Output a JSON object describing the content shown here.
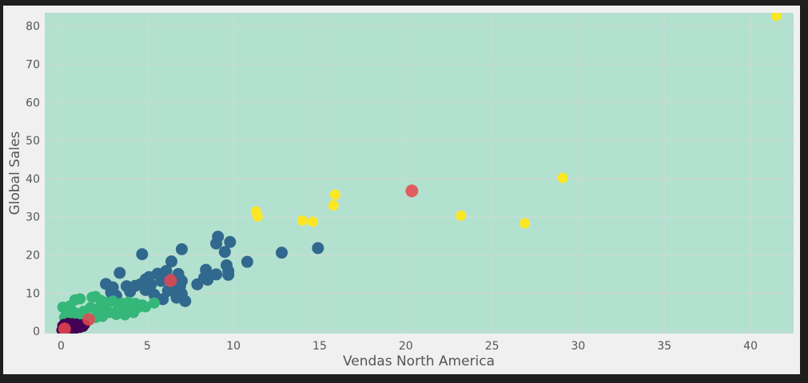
{
  "chart_data": {
    "type": "scatter",
    "title": "",
    "xlabel": "Vendas North America",
    "ylabel": "Global Sales",
    "xlim": [
      -0.95,
      42.5
    ],
    "ylim": [
      -0.6,
      83.5
    ],
    "xticks": [
      0,
      5,
      10,
      15,
      20,
      25,
      30,
      35,
      40
    ],
    "yticks": [
      0,
      10,
      20,
      30,
      40,
      50,
      60,
      70,
      80
    ],
    "grid": true,
    "colors": {
      "figure_background": "#f0f0f0",
      "grid": "#d6d6d6",
      "region_top": "#cccccc",
      "region_blue": "#cbd6e8",
      "region_yellow": "#fff2b3",
      "region_green": "#b3e1cf",
      "centroid": "#e8474f"
    },
    "regions": [
      {
        "name": "cluster-4-region",
        "color": "#cccccc",
        "boundary_lower": [
          [
            -0.95,
            34.0
          ],
          [
            42.5,
            8.0
          ]
        ]
      },
      {
        "name": "cluster-1-region",
        "color": "#cbd6e8",
        "boundary_lower": [
          [
            -0.95,
            11.0
          ],
          [
            23.0,
            -0.6
          ]
        ]
      },
      {
        "name": "cluster-2-region",
        "color": "#fff2b3",
        "boundary_lower": [
          [
            -0.95,
            2.4
          ],
          [
            5.5,
            -0.6
          ]
        ]
      },
      {
        "name": "cluster-0-region",
        "color": "#b3e1cf",
        "boundary_lower": null
      }
    ],
    "series": [
      {
        "color": "#fde725",
        "size": 6.5,
        "points": [
          [
            41.5,
            82.7
          ],
          [
            29.1,
            40.2
          ],
          [
            26.9,
            28.3
          ],
          [
            23.2,
            30.3
          ],
          [
            15.9,
            35.8
          ],
          [
            15.8,
            33.0
          ],
          [
            14.6,
            28.7
          ],
          [
            14.0,
            29.0
          ],
          [
            11.4,
            30.1
          ],
          [
            11.3,
            31.4
          ]
        ]
      },
      {
        "color": "#31688e",
        "size": 7.5,
        "points": [
          [
            9.1,
            24.8
          ],
          [
            9.0,
            23.0
          ],
          [
            9.8,
            23.4
          ],
          [
            9.5,
            20.8
          ],
          [
            12.8,
            20.6
          ],
          [
            14.9,
            21.8
          ],
          [
            7.0,
            21.5
          ],
          [
            4.7,
            20.2
          ],
          [
            10.8,
            18.2
          ],
          [
            6.4,
            18.3
          ],
          [
            9.6,
            17.3
          ],
          [
            9.7,
            15.8
          ],
          [
            9.7,
            14.8
          ],
          [
            9.0,
            14.9
          ],
          [
            8.4,
            16.1
          ],
          [
            8.3,
            14.0
          ],
          [
            8.5,
            13.5
          ],
          [
            7.9,
            12.3
          ],
          [
            7.2,
            7.9
          ],
          [
            6.8,
            15.0
          ],
          [
            7.0,
            13.2
          ],
          [
            6.9,
            11.8
          ],
          [
            7.0,
            9.8
          ],
          [
            6.7,
            8.8
          ],
          [
            6.1,
            15.8
          ],
          [
            5.6,
            15.1
          ],
          [
            5.1,
            14.2
          ],
          [
            4.9,
            13.6
          ],
          [
            5.8,
            13.2
          ],
          [
            6.4,
            13.3
          ],
          [
            6.5,
            11.0
          ],
          [
            5.9,
            8.4
          ],
          [
            5.4,
            9.6
          ],
          [
            4.6,
            12.3
          ],
          [
            4.3,
            11.9
          ],
          [
            3.8,
            11.8
          ],
          [
            3.4,
            15.3
          ],
          [
            3.0,
            11.5
          ],
          [
            2.6,
            12.4
          ],
          [
            3.2,
            9.3
          ],
          [
            2.9,
            10.2
          ],
          [
            4.0,
            10.4
          ],
          [
            4.9,
            10.8
          ],
          [
            5.2,
            12.2
          ],
          [
            6.2,
            10.6
          ]
        ]
      },
      {
        "color": "#35b779",
        "size": 7,
        "points": [
          [
            0.1,
            6.3
          ],
          [
            0.3,
            5.5
          ],
          [
            0.5,
            6.6
          ],
          [
            0.8,
            8.2
          ],
          [
            1.1,
            8.5
          ],
          [
            1.8,
            8.9
          ],
          [
            2.0,
            9.1
          ],
          [
            2.3,
            8.1
          ],
          [
            2.6,
            7.6
          ],
          [
            3.0,
            7.9
          ],
          [
            3.5,
            7.3
          ],
          [
            3.9,
            7.6
          ],
          [
            4.3,
            7.3
          ],
          [
            4.7,
            6.9
          ],
          [
            5.4,
            7.4
          ],
          [
            4.9,
            6.4
          ],
          [
            4.2,
            4.9
          ],
          [
            3.7,
            4.3
          ],
          [
            3.2,
            4.4
          ],
          [
            2.8,
            4.9
          ],
          [
            2.4,
            3.9
          ],
          [
            2.0,
            3.6
          ],
          [
            1.6,
            3.0
          ],
          [
            1.2,
            2.8
          ],
          [
            0.9,
            3.4
          ],
          [
            0.6,
            3.9
          ],
          [
            0.4,
            4.2
          ],
          [
            0.2,
            3.6
          ],
          [
            1.3,
            5.2
          ],
          [
            1.7,
            6.2
          ],
          [
            2.1,
            5.9
          ],
          [
            2.5,
            6.4
          ],
          [
            3.3,
            5.7
          ],
          [
            3.8,
            6.1
          ],
          [
            4.5,
            6.3
          ],
          [
            1.0,
            4.6
          ],
          [
            0.7,
            5.1
          ],
          [
            2.7,
            5.3
          ],
          [
            3.6,
            5.0
          ],
          [
            4.0,
            5.8
          ]
        ]
      },
      {
        "color": "#440154",
        "size": 6,
        "points": [
          [
            0.0,
            0.3
          ],
          [
            0.1,
            0.6
          ],
          [
            0.2,
            1.1
          ],
          [
            0.3,
            1.7
          ],
          [
            0.4,
            2.3
          ],
          [
            0.5,
            1.9
          ],
          [
            0.6,
            1.4
          ],
          [
            0.7,
            1.0
          ],
          [
            0.8,
            1.6
          ],
          [
            0.9,
            2.1
          ],
          [
            1.0,
            1.3
          ],
          [
            1.1,
            0.8
          ],
          [
            1.2,
            1.9
          ],
          [
            1.4,
            1.7
          ],
          [
            0.15,
            2.0
          ],
          [
            0.25,
            0.2
          ],
          [
            0.45,
            0.7
          ],
          [
            0.55,
            0.4
          ],
          [
            0.85,
            0.5
          ],
          [
            1.3,
            1.1
          ],
          [
            0.05,
            1.5
          ],
          [
            0.65,
            2.2
          ]
        ]
      }
    ],
    "centroids": [
      [
        20.35,
        36.8
      ],
      [
        6.35,
        13.3
      ],
      [
        1.6,
        3.1
      ],
      [
        0.2,
        0.6
      ]
    ]
  }
}
